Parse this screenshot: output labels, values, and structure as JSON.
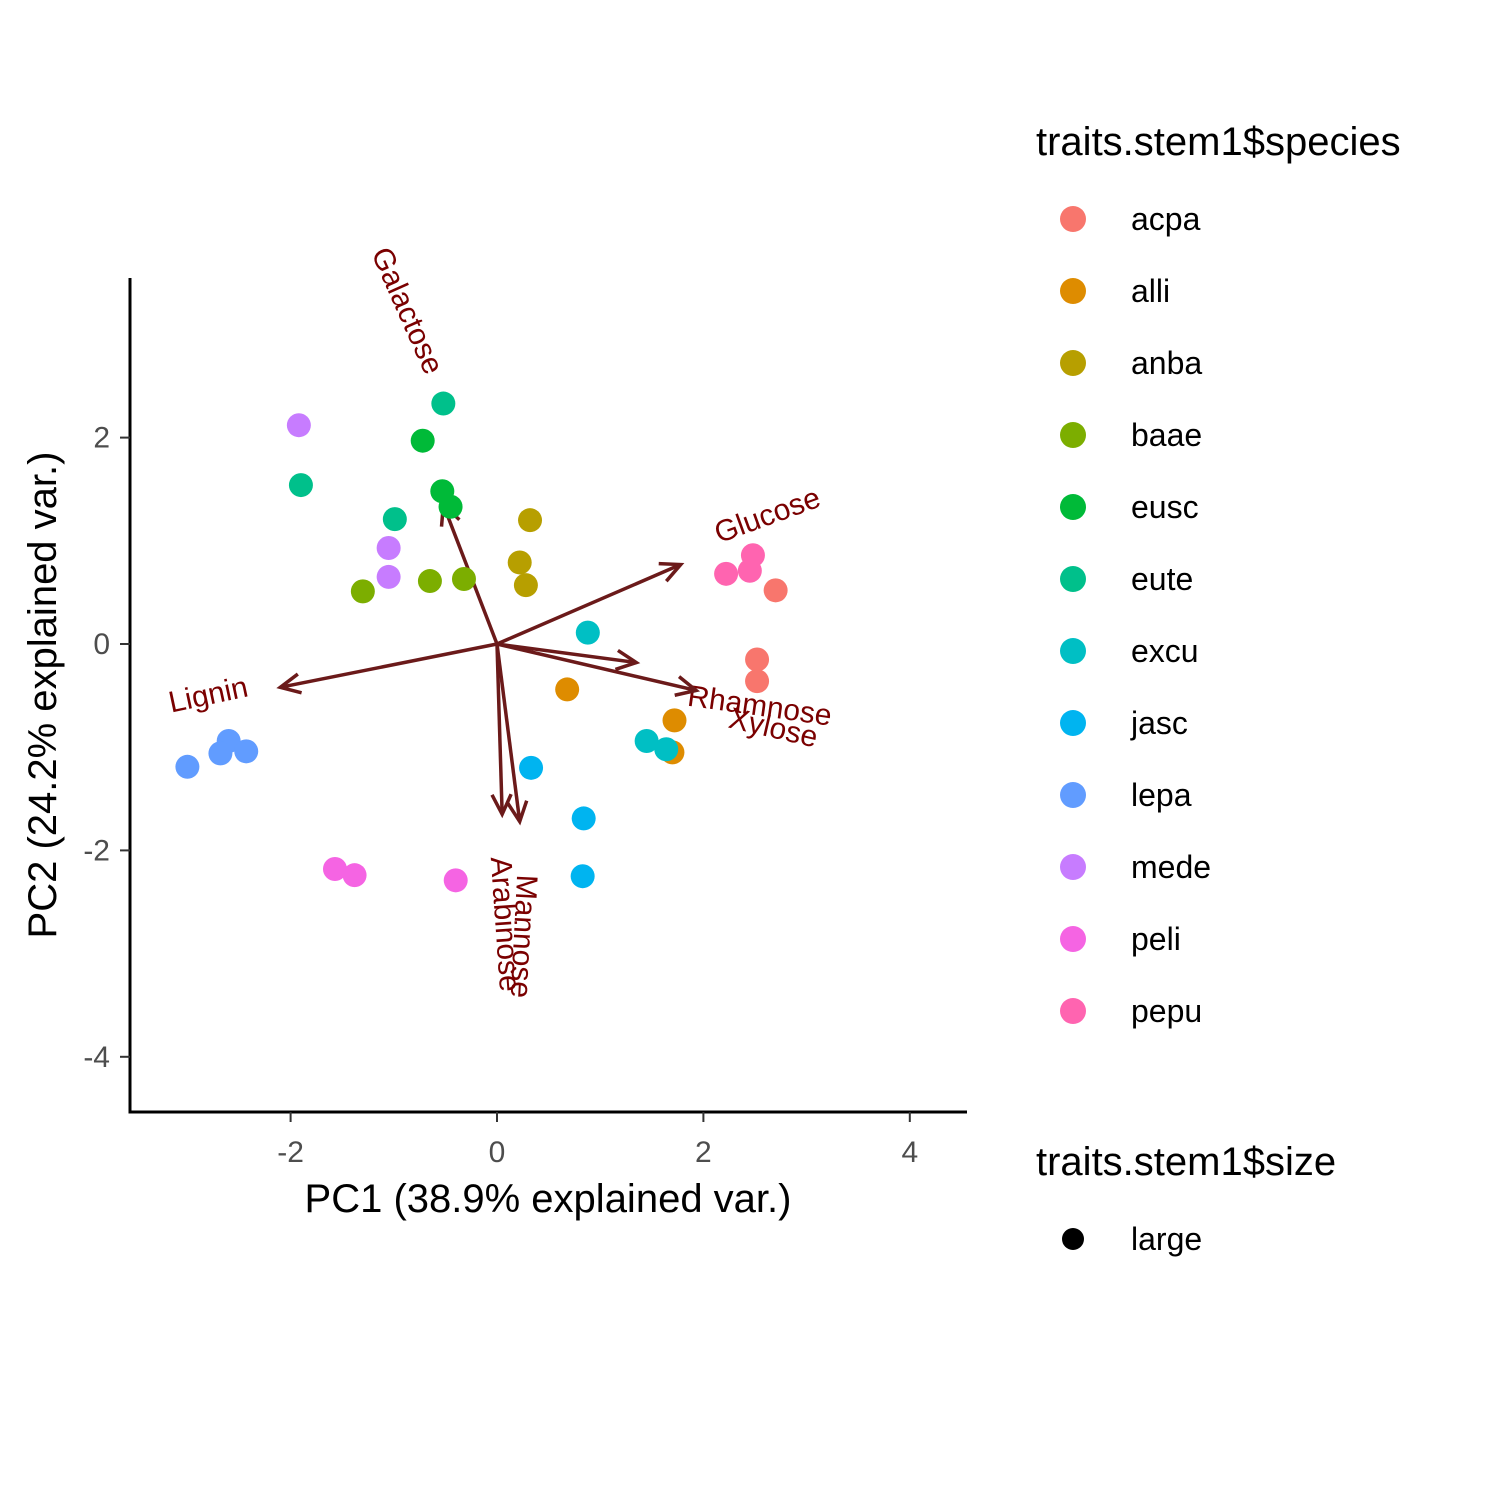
{
  "chart_data": {
    "type": "scatter",
    "xlabel": "PC1 (38.9% explained var.)",
    "ylabel": "PC2 (24.2% explained var.)",
    "xlim": [
      -3.2,
      4.6
    ],
    "ylim": [
      -4.6,
      3.5
    ],
    "x_ticks": [
      -2,
      0,
      2,
      4
    ],
    "y_ticks": [
      2,
      0,
      -2,
      -4
    ],
    "grid": false,
    "legend_position": "right",
    "colors": {
      "acpa": "#F8766D",
      "alli": "#DE8C00",
      "anba": "#B79F00",
      "baae": "#7CAE00",
      "eusc": "#00BA38",
      "eute": "#00C08B",
      "excu": "#00BFC4",
      "jasc": "#00B4F0",
      "lepa": "#619CFF",
      "mede": "#C77CFF",
      "peli": "#F564E3",
      "pepu": "#FF64B0"
    },
    "legend_species": {
      "title": "traits.stem1$species",
      "items": [
        "acpa",
        "alli",
        "anba",
        "baae",
        "eusc",
        "eute",
        "excu",
        "jasc",
        "lepa",
        "mede",
        "peli",
        "pepu"
      ]
    },
    "legend_size": {
      "title": "traits.stem1$size",
      "items": [
        "large"
      ]
    },
    "points": [
      {
        "species": "acpa",
        "x": 2.7,
        "y": 0.52
      },
      {
        "species": "acpa",
        "x": 2.52,
        "y": -0.15
      },
      {
        "species": "acpa",
        "x": 2.52,
        "y": -0.36
      },
      {
        "species": "alli",
        "x": 0.68,
        "y": -0.44
      },
      {
        "species": "alli",
        "x": 1.72,
        "y": -0.74
      },
      {
        "species": "alli",
        "x": 1.7,
        "y": -1.05
      },
      {
        "species": "anba",
        "x": 0.32,
        "y": 1.2
      },
      {
        "species": "anba",
        "x": 0.22,
        "y": 0.79
      },
      {
        "species": "anba",
        "x": 0.28,
        "y": 0.57
      },
      {
        "species": "baae",
        "x": -1.3,
        "y": 0.51
      },
      {
        "species": "baae",
        "x": -0.65,
        "y": 0.61
      },
      {
        "species": "baae",
        "x": -0.32,
        "y": 0.63
      },
      {
        "species": "eusc",
        "x": -0.72,
        "y": 1.97
      },
      {
        "species": "eusc",
        "x": -0.53,
        "y": 1.48
      },
      {
        "species": "eusc",
        "x": -0.45,
        "y": 1.33
      },
      {
        "species": "eute",
        "x": -0.52,
        "y": 2.33
      },
      {
        "species": "eute",
        "x": -1.9,
        "y": 1.54
      },
      {
        "species": "eute",
        "x": -0.99,
        "y": 1.21
      },
      {
        "species": "excu",
        "x": 0.88,
        "y": 0.11
      },
      {
        "species": "excu",
        "x": 1.45,
        "y": -0.94
      },
      {
        "species": "excu",
        "x": 1.64,
        "y": -1.02
      },
      {
        "species": "jasc",
        "x": 0.33,
        "y": -1.2
      },
      {
        "species": "jasc",
        "x": 0.84,
        "y": -1.69
      },
      {
        "species": "jasc",
        "x": 0.83,
        "y": -2.25
      },
      {
        "species": "lepa",
        "x": -3.0,
        "y": -1.19
      },
      {
        "species": "lepa",
        "x": -2.6,
        "y": -0.94
      },
      {
        "species": "lepa",
        "x": -2.68,
        "y": -1.06
      },
      {
        "species": "lepa",
        "x": -2.43,
        "y": -1.04
      },
      {
        "species": "mede",
        "x": -1.92,
        "y": 2.12
      },
      {
        "species": "mede",
        "x": -1.05,
        "y": 0.93
      },
      {
        "species": "mede",
        "x": -1.05,
        "y": 0.65
      },
      {
        "species": "peli",
        "x": -1.57,
        "y": -2.18
      },
      {
        "species": "peli",
        "x": -1.38,
        "y": -2.24
      },
      {
        "species": "peli",
        "x": -0.4,
        "y": -2.29
      },
      {
        "species": "pepu",
        "x": 2.22,
        "y": 0.68
      },
      {
        "species": "pepu",
        "x": 2.48,
        "y": 0.86
      },
      {
        "species": "pepu",
        "x": 2.45,
        "y": 0.71
      }
    ],
    "loadings": [
      {
        "label": "Galactose",
        "x": -0.52,
        "y": 1.35
      },
      {
        "label": "Glucose",
        "x": 1.78,
        "y": 0.77
      },
      {
        "label": "Lignin",
        "x": -2.1,
        "y": -0.42
      },
      {
        "label": "Rhamnose",
        "x": 1.35,
        "y": -0.18
      },
      {
        "label": "Xylose",
        "x": 1.93,
        "y": -0.45
      },
      {
        "label": "Mannose",
        "x": 0.05,
        "y": -1.65
      },
      {
        "label": "Arabinose",
        "x": 0.22,
        "y": -1.72
      }
    ],
    "loading_color": "#6b1a1a",
    "loading_label_color": "#7a0000"
  }
}
